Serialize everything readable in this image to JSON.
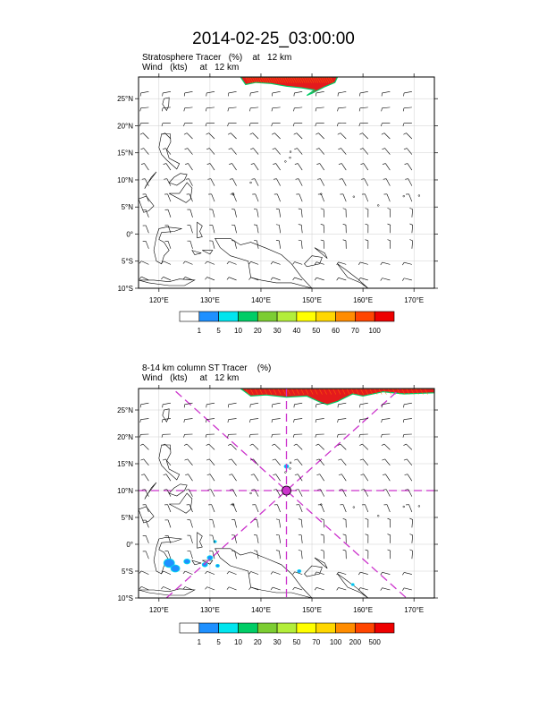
{
  "title": "2014-02-25_03:00:00",
  "colors": {
    "tracer_high": "#e41a1c",
    "tracer_mid": "#ff6a00",
    "guide_lines": "#cc33cc",
    "coast": "#000000",
    "wind_barb": "#000000"
  },
  "chart_data": [
    {
      "type": "heatmap",
      "title": "Stratosphere Tracer   (%)    at   12 km",
      "subtitle": "Wind   (kts)     at   12 km",
      "xlim": [
        116,
        174
      ],
      "ylim": [
        -10,
        29
      ],
      "xticks": [
        120,
        130,
        140,
        150,
        160,
        170
      ],
      "xtick_labels": [
        "120°E",
        "130°E",
        "140°E",
        "150°E",
        "160°E",
        "170°E"
      ],
      "yticks": [
        -10,
        -5,
        0,
        5,
        10,
        15,
        20,
        25
      ],
      "ytick_labels": [
        "10°S",
        "5°S",
        "0°",
        "5°N",
        "10°N",
        "15°N",
        "20°N",
        "25°N"
      ],
      "grid": true,
      "colorbar": {
        "labels": [
          "1",
          "5",
          "10",
          "20",
          "30",
          "40",
          "50",
          "60",
          "70",
          "100"
        ],
        "colors": [
          "#ffffff",
          "#1e90ff",
          "#00e5ee",
          "#00cd66",
          "#7ccd32",
          "#b3ee3a",
          "#ffff00",
          "#ffd700",
          "#ff8c00",
          "#ff4500",
          "#ee0000"
        ]
      },
      "tracer_region": "high-latitude band north of ~27°N, 136°E–155°E"
    },
    {
      "type": "heatmap",
      "title": "8-14 km column ST Tracer    (%)",
      "subtitle": "Wind   (kts)     at   12 km",
      "xlim": [
        116,
        174
      ],
      "ylim": [
        -10,
        29
      ],
      "xticks": [
        120,
        130,
        140,
        150,
        160,
        170
      ],
      "xtick_labels": [
        "120°E",
        "130°E",
        "140°E",
        "150°E",
        "160°E",
        "170°E"
      ],
      "yticks": [
        -10,
        -5,
        0,
        5,
        10,
        15,
        20,
        25
      ],
      "ytick_labels": [
        "10°S",
        "5°S",
        "0°",
        "5°N",
        "10°N",
        "15°N",
        "20°N",
        "25°N"
      ],
      "grid": true,
      "colorbar": {
        "labels": [
          "1",
          "5",
          "10",
          "20",
          "30",
          "50",
          "70",
          "100",
          "200",
          "500"
        ],
        "colors": [
          "#ffffff",
          "#1e90ff",
          "#00e5ee",
          "#00cd66",
          "#7ccd32",
          "#b3ee3a",
          "#ffff00",
          "#ffd700",
          "#ff8c00",
          "#ff4500",
          "#ee0000"
        ]
      },
      "center_marker": {
        "lon": 145,
        "lat": 10
      },
      "tracer_region": "high-latitude band north of ~26°N, 136°E–174°E; small patches near 122°E–130°E, 5°S–0°"
    }
  ]
}
